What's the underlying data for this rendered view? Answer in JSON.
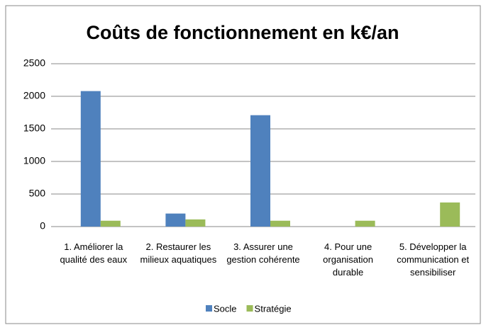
{
  "chart_data": {
    "type": "bar",
    "title": "Coûts de fonctionnement en k€/an",
    "categories": [
      "1. Améliorer la qualité des eaux",
      "2. Restaurer les milieux aquatiques",
      "3. Assurer une gestion cohérente",
      "4. Pour une organisation durable",
      "5. Développer la communication et sensibiliser"
    ],
    "series": [
      {
        "name": "Socle",
        "color": "#4f81bd",
        "values": [
          2080,
          200,
          1710,
          0,
          0
        ]
      },
      {
        "name": "Stratégie",
        "color": "#9bbb59",
        "values": [
          90,
          110,
          90,
          90,
          370
        ]
      }
    ],
    "ylim": [
      0,
      2500
    ],
    "yticks": [
      0,
      500,
      1000,
      1500,
      2000,
      2500
    ],
    "grid": true,
    "legend": "bottom"
  }
}
